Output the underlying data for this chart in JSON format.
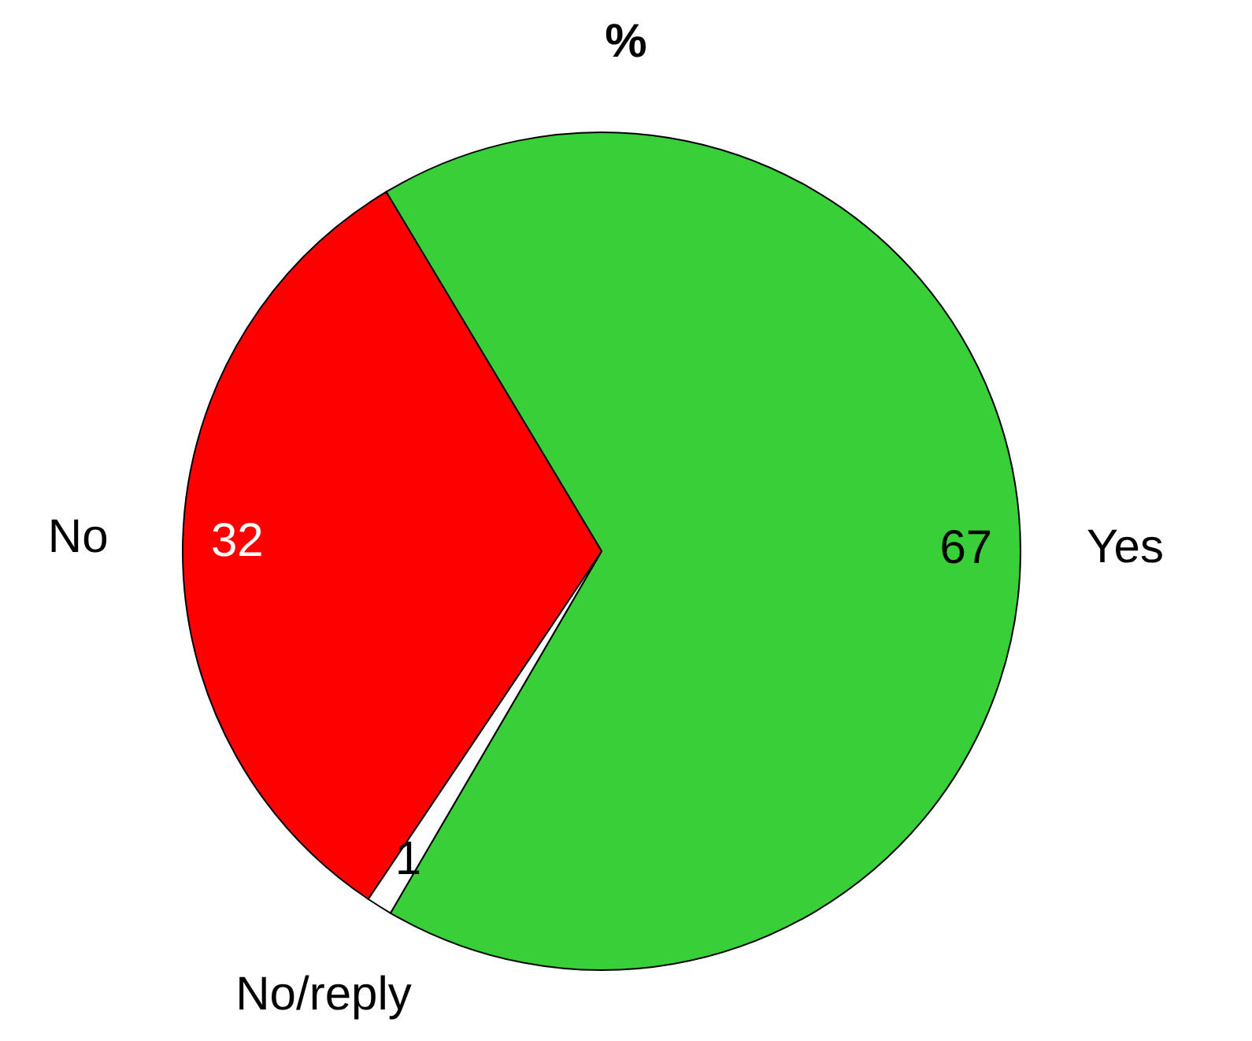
{
  "chart_data": {
    "type": "pie",
    "title": "%",
    "categories": [
      "Yes",
      "No/reply",
      "No"
    ],
    "values": [
      67,
      1,
      32
    ],
    "colors": [
      "#39cf39",
      "#ffffff",
      "#ff0000"
    ],
    "data_labels": true
  }
}
